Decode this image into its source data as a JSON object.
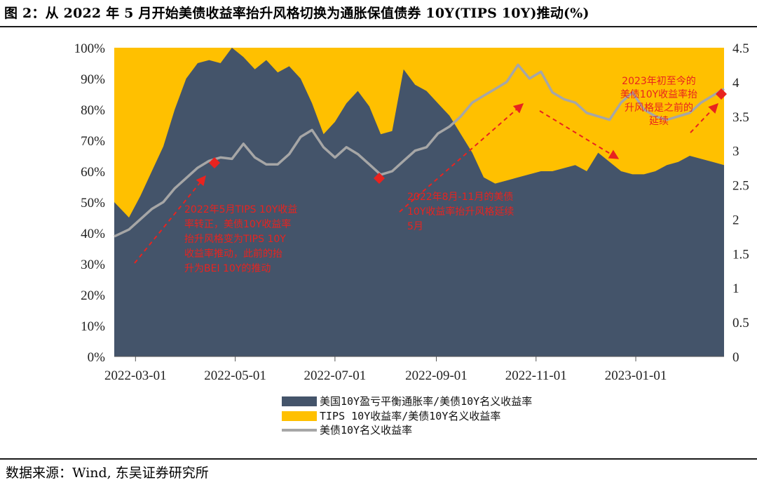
{
  "title": "图 2：从 2022 年 5 月开始美债收益率抬升风格切换为通胀保值债券 10Y(TIPS 10Y)推动(%)",
  "source": "数据来源：Wind, 东吴证券研究所",
  "chart_data": {
    "type": "area",
    "x_ticks": [
      "2022-03-01",
      "2022-05-01",
      "2022-07-01",
      "2022-09-01",
      "2022-11-01",
      "2023-01-01"
    ],
    "x_range": [
      "2022-02-16",
      "2023-02-24"
    ],
    "y_left": {
      "range": [
        0,
        100
      ],
      "ticks": [
        "0%",
        "10%",
        "20%",
        "30%",
        "40%",
        "50%",
        "60%",
        "70%",
        "80%",
        "90%",
        "100%"
      ]
    },
    "y_right": {
      "range": [
        0,
        4.5
      ],
      "ticks": [
        "0",
        "0.5",
        "1",
        "1.5",
        "2",
        "2.5",
        "3",
        "3.5",
        "4",
        "4.5"
      ]
    },
    "grid": false,
    "legend_position": "bottom",
    "colors": {
      "bei": "#44546a",
      "tips": "#ffc000",
      "nominal": "#a6a6a6",
      "annotation": "#e8231f"
    },
    "series": [
      {
        "name": "美国10Y盈亏平衡通胀率/美债10Y名义收益率",
        "kind": "stacked-area-bottom",
        "axis": "left",
        "x": [
          "2022-02-16",
          "2022-02-25",
          "2022-03-04",
          "2022-03-11",
          "2022-03-18",
          "2022-03-25",
          "2022-04-01",
          "2022-04-08",
          "2022-04-15",
          "2022-04-22",
          "2022-04-29",
          "2022-05-06",
          "2022-05-13",
          "2022-05-20",
          "2022-05-27",
          "2022-06-03",
          "2022-06-10",
          "2022-06-17",
          "2022-06-24",
          "2022-07-01",
          "2022-07-08",
          "2022-07-15",
          "2022-07-22",
          "2022-07-29",
          "2022-08-05",
          "2022-08-12",
          "2022-08-19",
          "2022-08-26",
          "2022-09-02",
          "2022-09-09",
          "2022-09-16",
          "2022-09-23",
          "2022-09-30",
          "2022-10-07",
          "2022-10-14",
          "2022-10-21",
          "2022-10-28",
          "2022-11-04",
          "2022-11-11",
          "2022-11-18",
          "2022-11-25",
          "2022-12-02",
          "2022-12-09",
          "2022-12-16",
          "2022-12-23",
          "2022-12-30",
          "2023-01-06",
          "2023-01-13",
          "2023-01-20",
          "2023-01-27",
          "2023-02-03",
          "2023-02-10",
          "2023-02-17",
          "2023-02-24"
        ],
        "values": [
          50,
          45,
          52,
          60,
          68,
          80,
          90,
          95,
          96,
          95,
          100,
          97,
          93,
          96,
          92,
          94,
          90,
          82,
          72,
          76,
          82,
          86,
          81,
          72,
          73,
          93,
          88,
          86,
          82,
          78,
          72,
          66,
          58,
          56,
          57,
          58,
          59,
          60,
          60,
          61,
          62,
          60,
          66,
          63,
          60,
          59,
          59,
          60,
          62,
          63,
          65,
          64,
          63,
          62
        ]
      },
      {
        "name": "TIPS 10Y收益率/美债10Y名义收益率",
        "kind": "stacked-area-top",
        "axis": "left",
        "values_note": "100% minus the bottom series",
        "x": [
          "2022-02-16",
          "2022-02-25",
          "2022-03-04",
          "2022-03-11",
          "2022-03-18",
          "2022-03-25",
          "2022-04-01",
          "2022-04-08",
          "2022-04-15",
          "2022-04-22",
          "2022-04-29",
          "2022-05-06",
          "2022-05-13",
          "2022-05-20",
          "2022-05-27",
          "2022-06-03",
          "2022-06-10",
          "2022-06-17",
          "2022-06-24",
          "2022-07-01",
          "2022-07-08",
          "2022-07-15",
          "2022-07-22",
          "2022-07-29",
          "2022-08-05",
          "2022-08-12",
          "2022-08-19",
          "2022-08-26",
          "2022-09-02",
          "2022-09-09",
          "2022-09-16",
          "2022-09-23",
          "2022-09-30",
          "2022-10-07",
          "2022-10-14",
          "2022-10-21",
          "2022-10-28",
          "2022-11-04",
          "2022-11-11",
          "2022-11-18",
          "2022-11-25",
          "2022-12-02",
          "2022-12-09",
          "2022-12-16",
          "2022-12-23",
          "2022-12-30",
          "2023-01-06",
          "2023-01-13",
          "2023-01-20",
          "2023-01-27",
          "2023-02-03",
          "2023-02-10",
          "2023-02-17",
          "2023-02-24"
        ],
        "values": [
          50,
          55,
          48,
          40,
          32,
          20,
          10,
          5,
          4,
          5,
          0,
          3,
          7,
          4,
          8,
          6,
          10,
          18,
          28,
          24,
          18,
          14,
          19,
          28,
          27,
          7,
          12,
          14,
          18,
          22,
          28,
          34,
          42,
          44,
          43,
          42,
          41,
          40,
          40,
          39,
          38,
          40,
          34,
          37,
          40,
          41,
          41,
          40,
          38,
          37,
          35,
          36,
          37,
          38
        ]
      },
      {
        "name": "美债10Y名义收益率",
        "kind": "line",
        "axis": "right",
        "x": [
          "2022-02-16",
          "2022-02-25",
          "2022-03-04",
          "2022-03-11",
          "2022-03-18",
          "2022-03-25",
          "2022-04-01",
          "2022-04-08",
          "2022-04-15",
          "2022-04-22",
          "2022-04-29",
          "2022-05-06",
          "2022-05-13",
          "2022-05-20",
          "2022-05-27",
          "2022-06-03",
          "2022-06-10",
          "2022-06-17",
          "2022-06-24",
          "2022-07-01",
          "2022-07-08",
          "2022-07-15",
          "2022-07-22",
          "2022-07-29",
          "2022-08-05",
          "2022-08-12",
          "2022-08-19",
          "2022-08-26",
          "2022-09-02",
          "2022-09-09",
          "2022-09-16",
          "2022-09-23",
          "2022-09-30",
          "2022-10-07",
          "2022-10-14",
          "2022-10-21",
          "2022-10-28",
          "2022-11-04",
          "2022-11-11",
          "2022-11-18",
          "2022-11-25",
          "2022-12-02",
          "2022-12-09",
          "2022-12-16",
          "2022-12-23",
          "2022-12-30",
          "2023-01-06",
          "2023-01-13",
          "2023-01-20",
          "2023-01-27",
          "2023-02-03",
          "2023-02-10",
          "2023-02-17",
          "2023-02-24"
        ],
        "values": [
          1.75,
          1.85,
          2.0,
          2.15,
          2.25,
          2.45,
          2.6,
          2.75,
          2.85,
          2.9,
          2.88,
          3.1,
          2.9,
          2.8,
          2.8,
          2.95,
          3.2,
          3.3,
          3.05,
          2.9,
          3.05,
          2.95,
          2.8,
          2.65,
          2.7,
          2.85,
          3.0,
          3.05,
          3.25,
          3.35,
          3.5,
          3.7,
          3.8,
          3.9,
          4.0,
          4.25,
          4.05,
          4.15,
          3.85,
          3.75,
          3.7,
          3.55,
          3.5,
          3.45,
          3.7,
          3.85,
          3.6,
          3.5,
          3.45,
          3.5,
          3.55,
          3.7,
          3.8,
          3.9
        ]
      }
    ],
    "annotations": [
      {
        "text": "2022年5月TIPS 10Y收益率转正，美债10Y收益率抬升风格变为TIPS 10Y收益率推动，此前的抬升为BEI 10Y的推动",
        "lines": [
          "2022年5月TIPS 10Y收益",
          "率转正，美债10Y收益率",
          "抬升风格变为TIPS 10Y",
          "收益率推动，此前的抬",
          "升为BEI 10Y的推动"
        ]
      },
      {
        "text": "2022年8月-11月的美债10Y收益率抬升风格延续5月",
        "lines": [
          "2022年8月-11月的美债",
          "10Y收益率抬升风格延续",
          "5月"
        ]
      },
      {
        "text": "2023年初至今的美债10Y收益率抬升风格是之前的延续",
        "lines": [
          "2023年初至今的",
          "美债10Y收益率抬",
          "升风格是之前的",
          "延续"
        ]
      }
    ]
  }
}
